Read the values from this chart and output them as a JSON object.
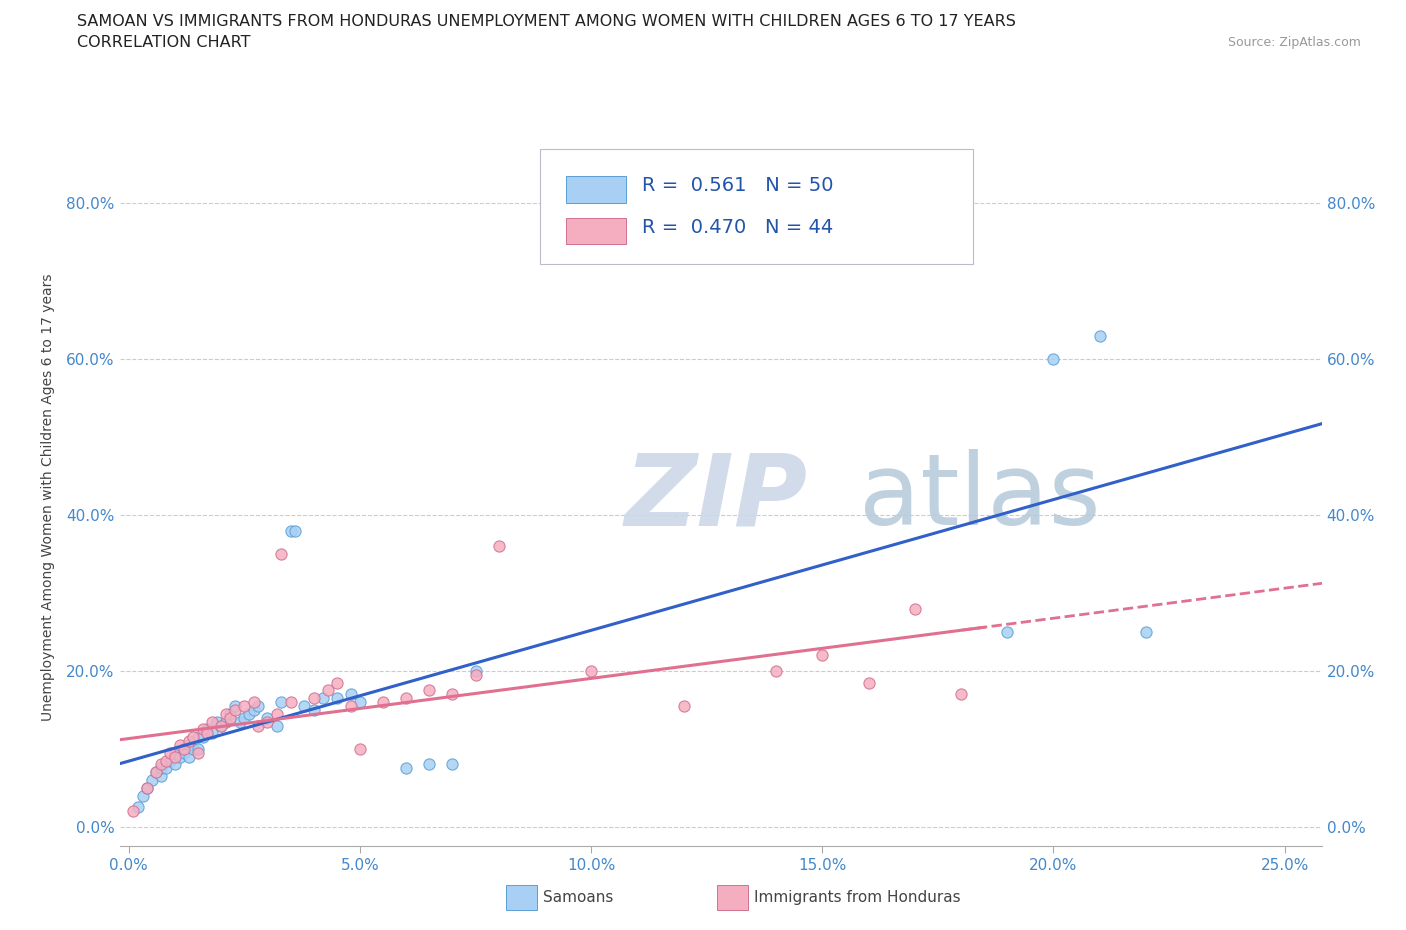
{
  "title_line1": "SAMOAN VS IMMIGRANTS FROM HONDURAS UNEMPLOYMENT AMONG WOMEN WITH CHILDREN AGES 6 TO 17 YEARS",
  "title_line2": "CORRELATION CHART",
  "source_text": "Source: ZipAtlas.com",
  "x_tick_vals": [
    0.0,
    0.05,
    0.1,
    0.15,
    0.2,
    0.25
  ],
  "x_tick_labels": [
    "0.0%",
    "5.0%",
    "10.0%",
    "15.0%",
    "20.0%",
    "25.0%"
  ],
  "y_tick_vals": [
    0.0,
    0.2,
    0.4,
    0.6,
    0.8
  ],
  "y_tick_labels": [
    "0.0%",
    "20.0%",
    "40.0%",
    "60.0%",
    "80.0%"
  ],
  "ylabel_label": "Unemployment Among Women with Children Ages 6 to 17 years",
  "xlim": [
    -0.002,
    0.258
  ],
  "ylim": [
    -0.025,
    0.87
  ],
  "samoans_color": "#a8d0f5",
  "samoans_edge": "#5a9fd4",
  "honduras_color": "#f5aec0",
  "honduras_edge": "#d07090",
  "samoan_R": "0.561",
  "samoan_N": "50",
  "honduras_R": "0.470",
  "honduras_N": "44",
  "watermark_color": "#ccd8e8",
  "regression_blue": "#3060c8",
  "regression_pink": "#e07090",
  "tick_color": "#4488cc",
  "title_color": "#222222",
  "samoans_x": [
    0.002,
    0.003,
    0.004,
    0.005,
    0.006,
    0.007,
    0.007,
    0.008,
    0.009,
    0.01,
    0.01,
    0.011,
    0.012,
    0.013,
    0.013,
    0.014,
    0.015,
    0.015,
    0.016,
    0.017,
    0.018,
    0.019,
    0.02,
    0.021,
    0.022,
    0.023,
    0.024,
    0.025,
    0.026,
    0.027,
    0.028,
    0.03,
    0.032,
    0.033,
    0.035,
    0.036,
    0.038,
    0.04,
    0.042,
    0.045,
    0.048,
    0.05,
    0.06,
    0.065,
    0.07,
    0.075,
    0.19,
    0.2,
    0.21,
    0.22
  ],
  "samoans_y": [
    0.025,
    0.04,
    0.05,
    0.06,
    0.07,
    0.065,
    0.075,
    0.075,
    0.085,
    0.08,
    0.095,
    0.09,
    0.095,
    0.09,
    0.105,
    0.1,
    0.1,
    0.115,
    0.115,
    0.125,
    0.12,
    0.135,
    0.13,
    0.135,
    0.145,
    0.155,
    0.135,
    0.14,
    0.145,
    0.15,
    0.155,
    0.14,
    0.13,
    0.16,
    0.38,
    0.38,
    0.155,
    0.15,
    0.165,
    0.165,
    0.17,
    0.16,
    0.075,
    0.08,
    0.08,
    0.2,
    0.25,
    0.6,
    0.63,
    0.25
  ],
  "honduras_x": [
    0.001,
    0.004,
    0.006,
    0.007,
    0.008,
    0.009,
    0.01,
    0.011,
    0.012,
    0.013,
    0.014,
    0.015,
    0.016,
    0.017,
    0.018,
    0.02,
    0.021,
    0.022,
    0.023,
    0.025,
    0.027,
    0.028,
    0.03,
    0.032,
    0.033,
    0.035,
    0.04,
    0.043,
    0.045,
    0.048,
    0.05,
    0.055,
    0.06,
    0.065,
    0.07,
    0.075,
    0.08,
    0.1,
    0.12,
    0.14,
    0.15,
    0.16,
    0.17,
    0.18
  ],
  "honduras_y": [
    0.02,
    0.05,
    0.07,
    0.08,
    0.085,
    0.095,
    0.09,
    0.105,
    0.1,
    0.11,
    0.115,
    0.095,
    0.125,
    0.12,
    0.135,
    0.13,
    0.145,
    0.14,
    0.15,
    0.155,
    0.16,
    0.13,
    0.135,
    0.145,
    0.35,
    0.16,
    0.165,
    0.175,
    0.185,
    0.155,
    0.1,
    0.16,
    0.165,
    0.175,
    0.17,
    0.195,
    0.36,
    0.2,
    0.155,
    0.2,
    0.22,
    0.185,
    0.28,
    0.17
  ]
}
